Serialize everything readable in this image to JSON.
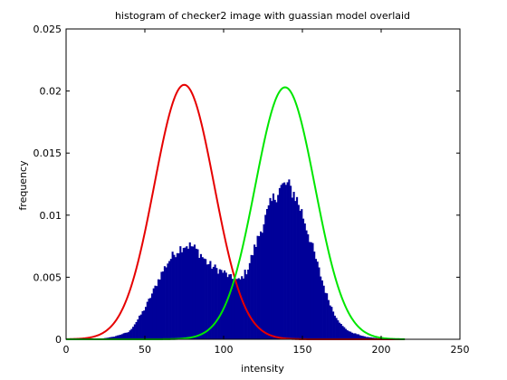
{
  "chart_data": {
    "type": "histogram",
    "title": "histogram of checker2 image with guassian model overlaid",
    "xlabel": "intensity",
    "ylabel": "frequency",
    "xlim": [
      0,
      250
    ],
    "ylim": [
      0,
      0.025
    ],
    "xticks": [
      0,
      50,
      100,
      150,
      200,
      250
    ],
    "yticks": [
      0,
      0.005,
      0.01,
      0.015,
      0.02,
      0.025
    ],
    "xtick_labels": [
      "0",
      "50",
      "100",
      "150",
      "200",
      "250"
    ],
    "ytick_labels": [
      "0",
      "0.005",
      "0.01",
      "0.015",
      "0.02",
      "0.025"
    ],
    "grid": false,
    "histogram": {
      "color": "#000099",
      "bin_width": 1,
      "profile": [
        [
          10,
          0
        ],
        [
          22,
          5e-05
        ],
        [
          30,
          0.0002
        ],
        [
          40,
          0.0006
        ],
        [
          45,
          0.0015
        ],
        [
          50,
          0.0025
        ],
        [
          55,
          0.0038
        ],
        [
          60,
          0.0052
        ],
        [
          65,
          0.0063
        ],
        [
          70,
          0.0071
        ],
        [
          75,
          0.0076
        ],
        [
          80,
          0.0075
        ],
        [
          85,
          0.0069
        ],
        [
          90,
          0.0061
        ],
        [
          95,
          0.0057
        ],
        [
          100,
          0.0054
        ],
        [
          103,
          0.0051
        ],
        [
          105,
          0.0049
        ],
        [
          110,
          0.0047
        ],
        [
          115,
          0.0056
        ],
        [
          120,
          0.0075
        ],
        [
          125,
          0.0093
        ],
        [
          130,
          0.0109
        ],
        [
          135,
          0.0121
        ],
        [
          140,
          0.0125
        ],
        [
          145,
          0.0117
        ],
        [
          150,
          0.0101
        ],
        [
          155,
          0.008
        ],
        [
          160,
          0.0058
        ],
        [
          165,
          0.0037
        ],
        [
          170,
          0.0021
        ],
        [
          175,
          0.0011
        ],
        [
          180,
          0.0006
        ],
        [
          190,
          0.0002
        ],
        [
          200,
          5e-05
        ],
        [
          215,
          0
        ]
      ]
    },
    "series": [
      {
        "type": "gaussian",
        "mean": 75,
        "peak": 0.0205,
        "sd": 19,
        "color": "#e60000"
      },
      {
        "type": "gaussian",
        "mean": 139,
        "peak": 0.0203,
        "sd": 19,
        "color": "#00e600"
      }
    ],
    "curve_x_range": [
      0,
      215
    ]
  }
}
